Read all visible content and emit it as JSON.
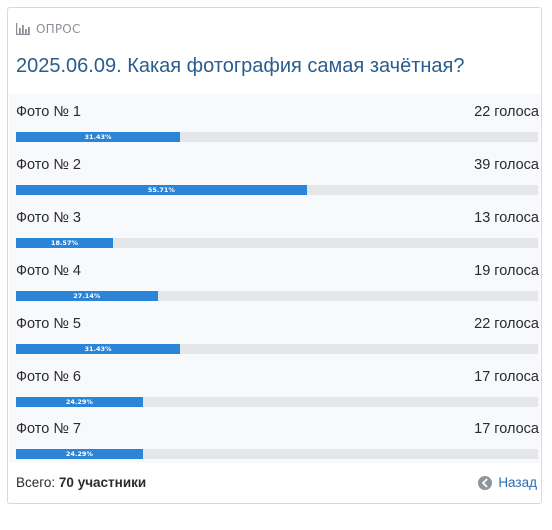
{
  "header": {
    "label": "ОПРОС",
    "icon": "bar-chart-icon"
  },
  "poll": {
    "title": "2025.06.09. Какая фотография самая зачётная?"
  },
  "results": [
    {
      "label": "Фото № 1",
      "votes_text": "22 голоса",
      "percent_text": "31.43%",
      "percent": 31.43
    },
    {
      "label": "Фото № 2",
      "votes_text": "39 голоса",
      "percent_text": "55.71%",
      "percent": 55.71
    },
    {
      "label": "Фото № 3",
      "votes_text": "13 голоса",
      "percent_text": "18.57%",
      "percent": 18.57
    },
    {
      "label": "Фото № 4",
      "votes_text": "19 голоса",
      "percent_text": "27.14%",
      "percent": 27.14
    },
    {
      "label": "Фото № 5",
      "votes_text": "22 голоса",
      "percent_text": "31.43%",
      "percent": 31.43
    },
    {
      "label": "Фото № 6",
      "votes_text": "17 голоса",
      "percent_text": "24.29%",
      "percent": 24.29
    },
    {
      "label": "Фото № 7",
      "votes_text": "17 голоса",
      "percent_text": "24.29%",
      "percent": 24.29
    }
  ],
  "footer": {
    "total_prefix": "Всего:",
    "total_value": "70 участники",
    "back_label": "Назад",
    "back_icon": "arrow-left-circle-icon"
  },
  "colors": {
    "title": "#2a5d8f",
    "bar_fill": "#2a84d8",
    "bar_track": "#e4e6ea",
    "link": "#2a6db0",
    "header_text": "#8a8f96"
  }
}
